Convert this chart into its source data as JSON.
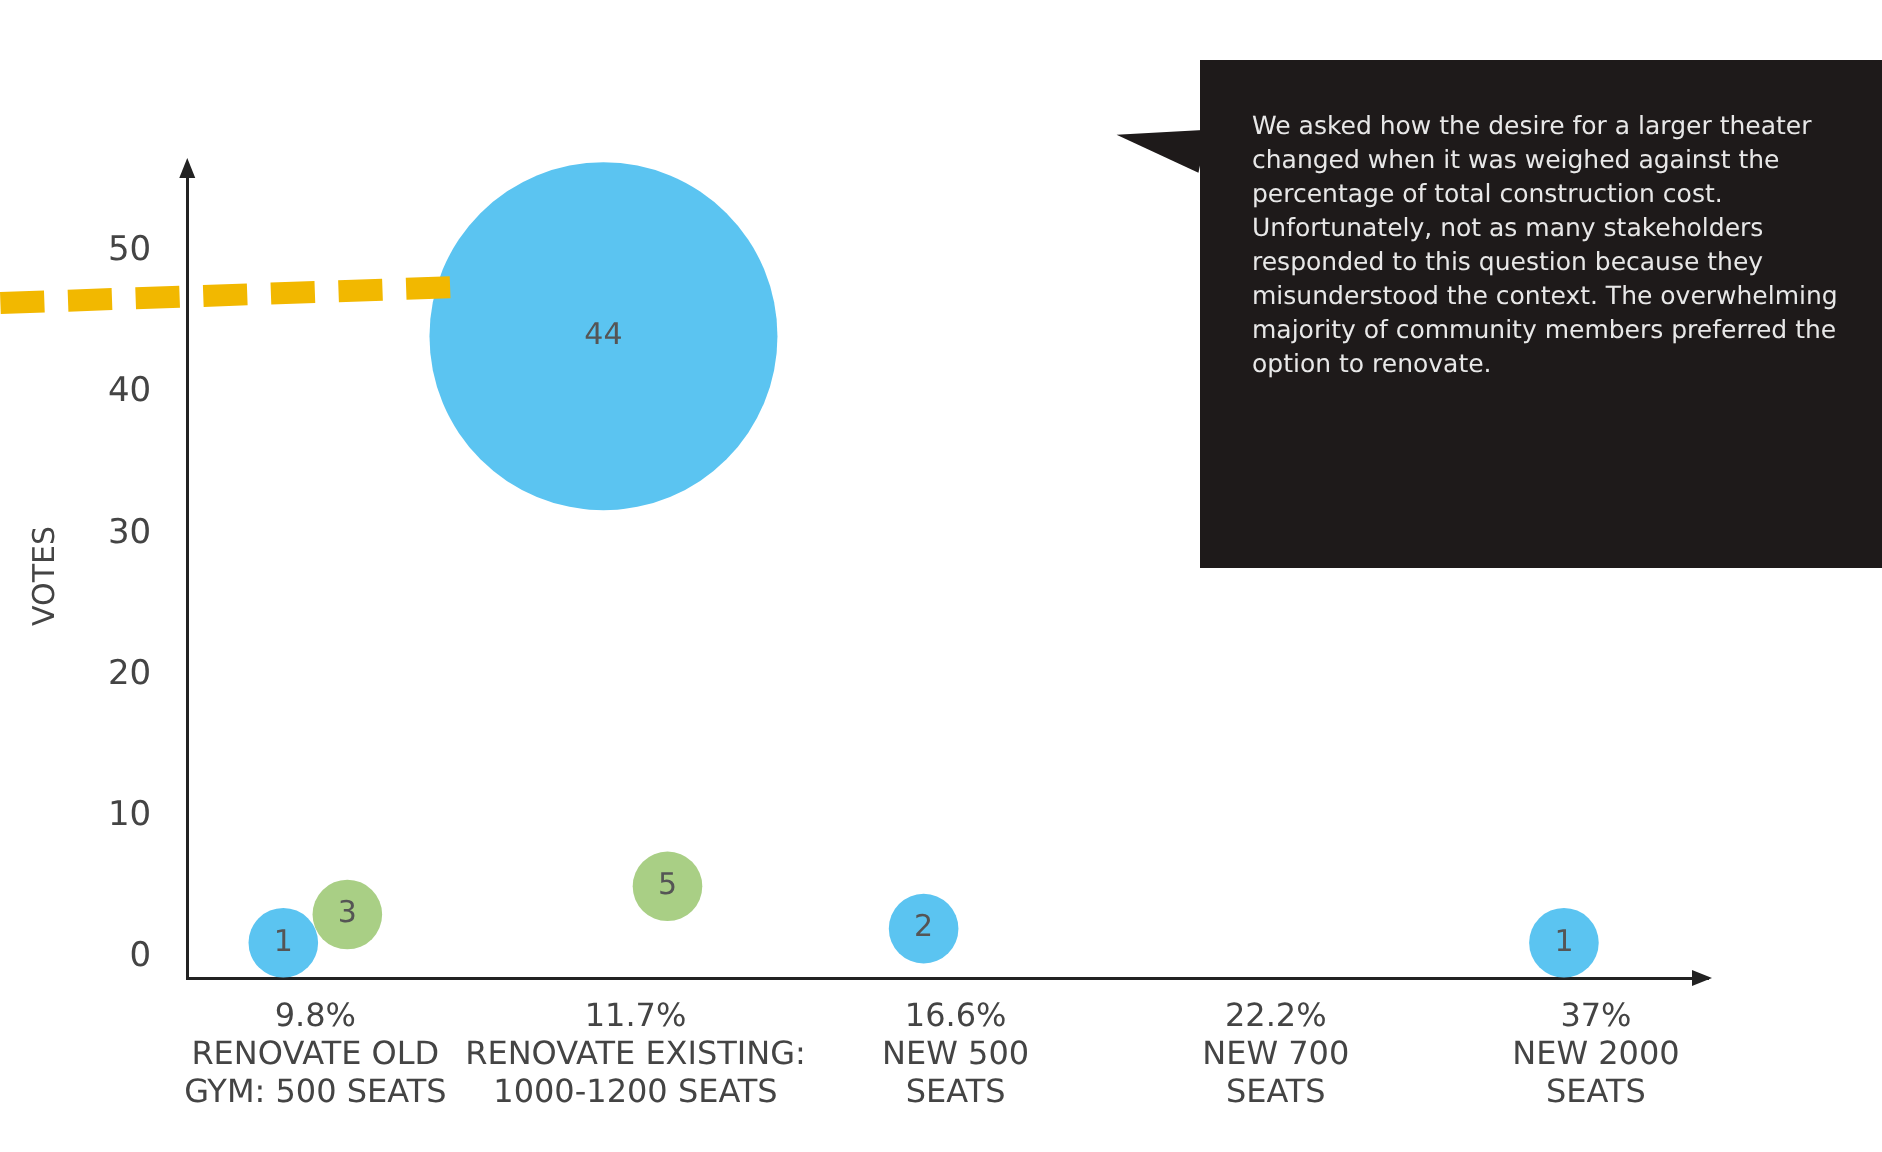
{
  "chart_data": {
    "type": "bubble",
    "ylabel": "VOTES",
    "categories": [
      "9.8%\nRENOVATE OLD\nGYM: 500 SEATS",
      "11.7%\nRENOVATE EXISTING:\n1000-1200 SEATS",
      "16.6%\nNEW 500\nSEATS",
      "22.2%\nNEW 700\nSEATS",
      "37%\nNEW 2000\nSEATS"
    ],
    "series": [
      {
        "color": "#5bc4f1",
        "x": [
          "9.8%\nRENOVATE OLD\nGYM: 500 SEATS",
          "11.7%\nRENOVATE EXISTING:\n1000-1200 SEATS",
          "16.6%\nNEW 500\nSEATS",
          "37%\nNEW 2000\nSEATS"
        ],
        "values": [
          1,
          44,
          2,
          1
        ],
        "sizes": [
          0.04,
          1,
          0.04,
          0.04
        ]
      },
      {
        "color": "#a9cf85",
        "x": [
          "9.8%\nRENOVATE OLD\nGYM: 500 SEATS",
          "11.7%\nRENOVATE EXISTING:\n1000-1200 SEATS"
        ],
        "values": [
          3,
          5
        ],
        "sizes": [
          0.04,
          0.04
        ]
      }
    ],
    "ylim": [
      -1.5,
      55.5
    ],
    "yticks": [
      0,
      10,
      20,
      30,
      40,
      50
    ],
    "grid": false,
    "legend": false,
    "data_labels": true,
    "annotations": [
      "We asked how the desire for a larger theater changed when it was weighed against the percentage of total construction cost. Unfortunately, not as many stakeholders responded to this question because they misunderstood the context. The overwhelming majority of community members preferred the option to renovate."
    ]
  }
}
